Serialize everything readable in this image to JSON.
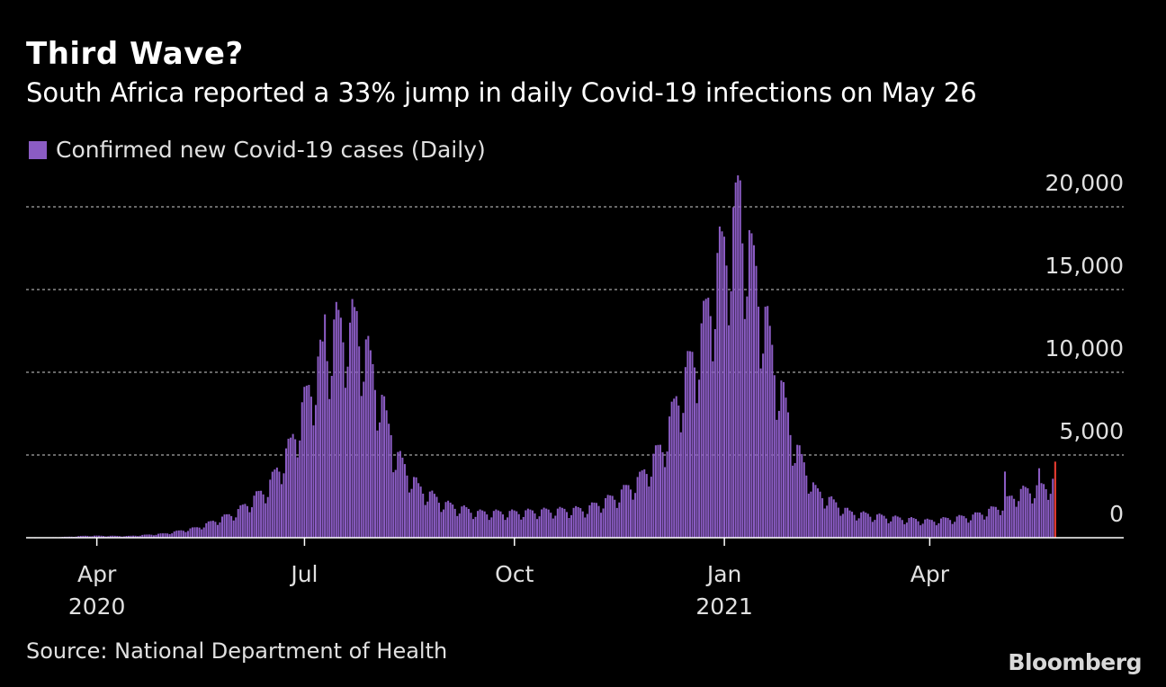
{
  "header": {
    "title": "Third Wave?",
    "subtitle": "South Africa reported a 33% jump in daily Covid-19 infections on May 26"
  },
  "legend": {
    "label": "Confirmed new Covid-19 cases (Daily)"
  },
  "footer": {
    "source": "Source: National Department of Health",
    "logo": "Bloomberg"
  },
  "colors": {
    "bar": "#8b5cc4",
    "highlight": "#e03a2f",
    "grid": "#8a8a8a",
    "axis": "#ffffff",
    "text": "#e0e0e0"
  },
  "chart_data": {
    "type": "bar",
    "title": "Third Wave?",
    "subtitle": "South Africa reported a 33% jump in daily Covid-19 infections on May 26",
    "x_start": "2020-03-05",
    "x_end": "2021-05-26",
    "ylim": [
      0,
      22000
    ],
    "yticks": [
      0,
      5000,
      10000,
      15000,
      20000
    ],
    "ytick_labels": [
      "0",
      "5,000",
      "10,000",
      "15,000",
      "20,000"
    ],
    "xticks": [
      {
        "date": "2020-04-01",
        "label": "Apr",
        "year": "2020"
      },
      {
        "date": "2020-07-01",
        "label": "Jul",
        "year": ""
      },
      {
        "date": "2020-10-01",
        "label": "Oct",
        "year": ""
      },
      {
        "date": "2021-01-01",
        "label": "Jan",
        "year": "2021"
      },
      {
        "date": "2021-04-01",
        "label": "Apr",
        "year": ""
      }
    ],
    "highlight": {
      "date": "2021-05-26",
      "value": 4600
    },
    "series": [
      {
        "name": "Confirmed new Covid-19 cases (Daily)",
        "points": [
          {
            "date": "2020-03-05",
            "value": 0
          },
          {
            "date": "2020-03-20",
            "value": 60
          },
          {
            "date": "2020-03-28",
            "value": 120
          },
          {
            "date": "2020-04-15",
            "value": 100
          },
          {
            "date": "2020-05-01",
            "value": 250
          },
          {
            "date": "2020-05-15",
            "value": 600
          },
          {
            "date": "2020-06-01",
            "value": 1500
          },
          {
            "date": "2020-06-15",
            "value": 3000
          },
          {
            "date": "2020-06-25",
            "value": 5500
          },
          {
            "date": "2020-07-01",
            "value": 8000
          },
          {
            "date": "2020-07-08",
            "value": 10500
          },
          {
            "date": "2020-07-15",
            "value": 12500
          },
          {
            "date": "2020-07-24",
            "value": 12700
          },
          {
            "date": "2020-08-01",
            "value": 9500
          },
          {
            "date": "2020-08-10",
            "value": 5000
          },
          {
            "date": "2020-08-20",
            "value": 3000
          },
          {
            "date": "2020-09-01",
            "value": 2000
          },
          {
            "date": "2020-09-15",
            "value": 1500
          },
          {
            "date": "2020-10-01",
            "value": 1500
          },
          {
            "date": "2020-10-15",
            "value": 1600
          },
          {
            "date": "2020-11-01",
            "value": 1700
          },
          {
            "date": "2020-11-15",
            "value": 2500
          },
          {
            "date": "2020-11-25",
            "value": 3500
          },
          {
            "date": "2020-12-05",
            "value": 5500
          },
          {
            "date": "2020-12-12",
            "value": 8500
          },
          {
            "date": "2020-12-22",
            "value": 12000
          },
          {
            "date": "2020-12-30",
            "value": 16500
          },
          {
            "date": "2021-01-08",
            "value": 19500
          },
          {
            "date": "2021-01-15",
            "value": 15500
          },
          {
            "date": "2021-01-22",
            "value": 11000
          },
          {
            "date": "2021-02-01",
            "value": 5500
          },
          {
            "date": "2021-02-10",
            "value": 2800
          },
          {
            "date": "2021-02-25",
            "value": 1500
          },
          {
            "date": "2021-03-15",
            "value": 1200
          },
          {
            "date": "2021-04-01",
            "value": 1000
          },
          {
            "date": "2021-04-20",
            "value": 1300
          },
          {
            "date": "2021-05-01",
            "value": 1800
          },
          {
            "date": "2021-05-10",
            "value": 2700
          },
          {
            "date": "2021-05-20",
            "value": 3000
          },
          {
            "date": "2021-05-25",
            "value": 3300
          }
        ],
        "spikes": [
          {
            "date": "2020-07-10",
            "value": 13500
          },
          {
            "date": "2020-07-21",
            "value": 13000
          },
          {
            "date": "2020-07-24",
            "value": 13700
          },
          {
            "date": "2020-08-08",
            "value": 6200
          },
          {
            "date": "2021-01-07",
            "value": 21900
          },
          {
            "date": "2021-01-08",
            "value": 21600
          },
          {
            "date": "2021-01-13",
            "value": 18400
          },
          {
            "date": "2021-05-04",
            "value": 4000
          },
          {
            "date": "2021-05-19",
            "value": 4200
          }
        ]
      }
    ]
  }
}
